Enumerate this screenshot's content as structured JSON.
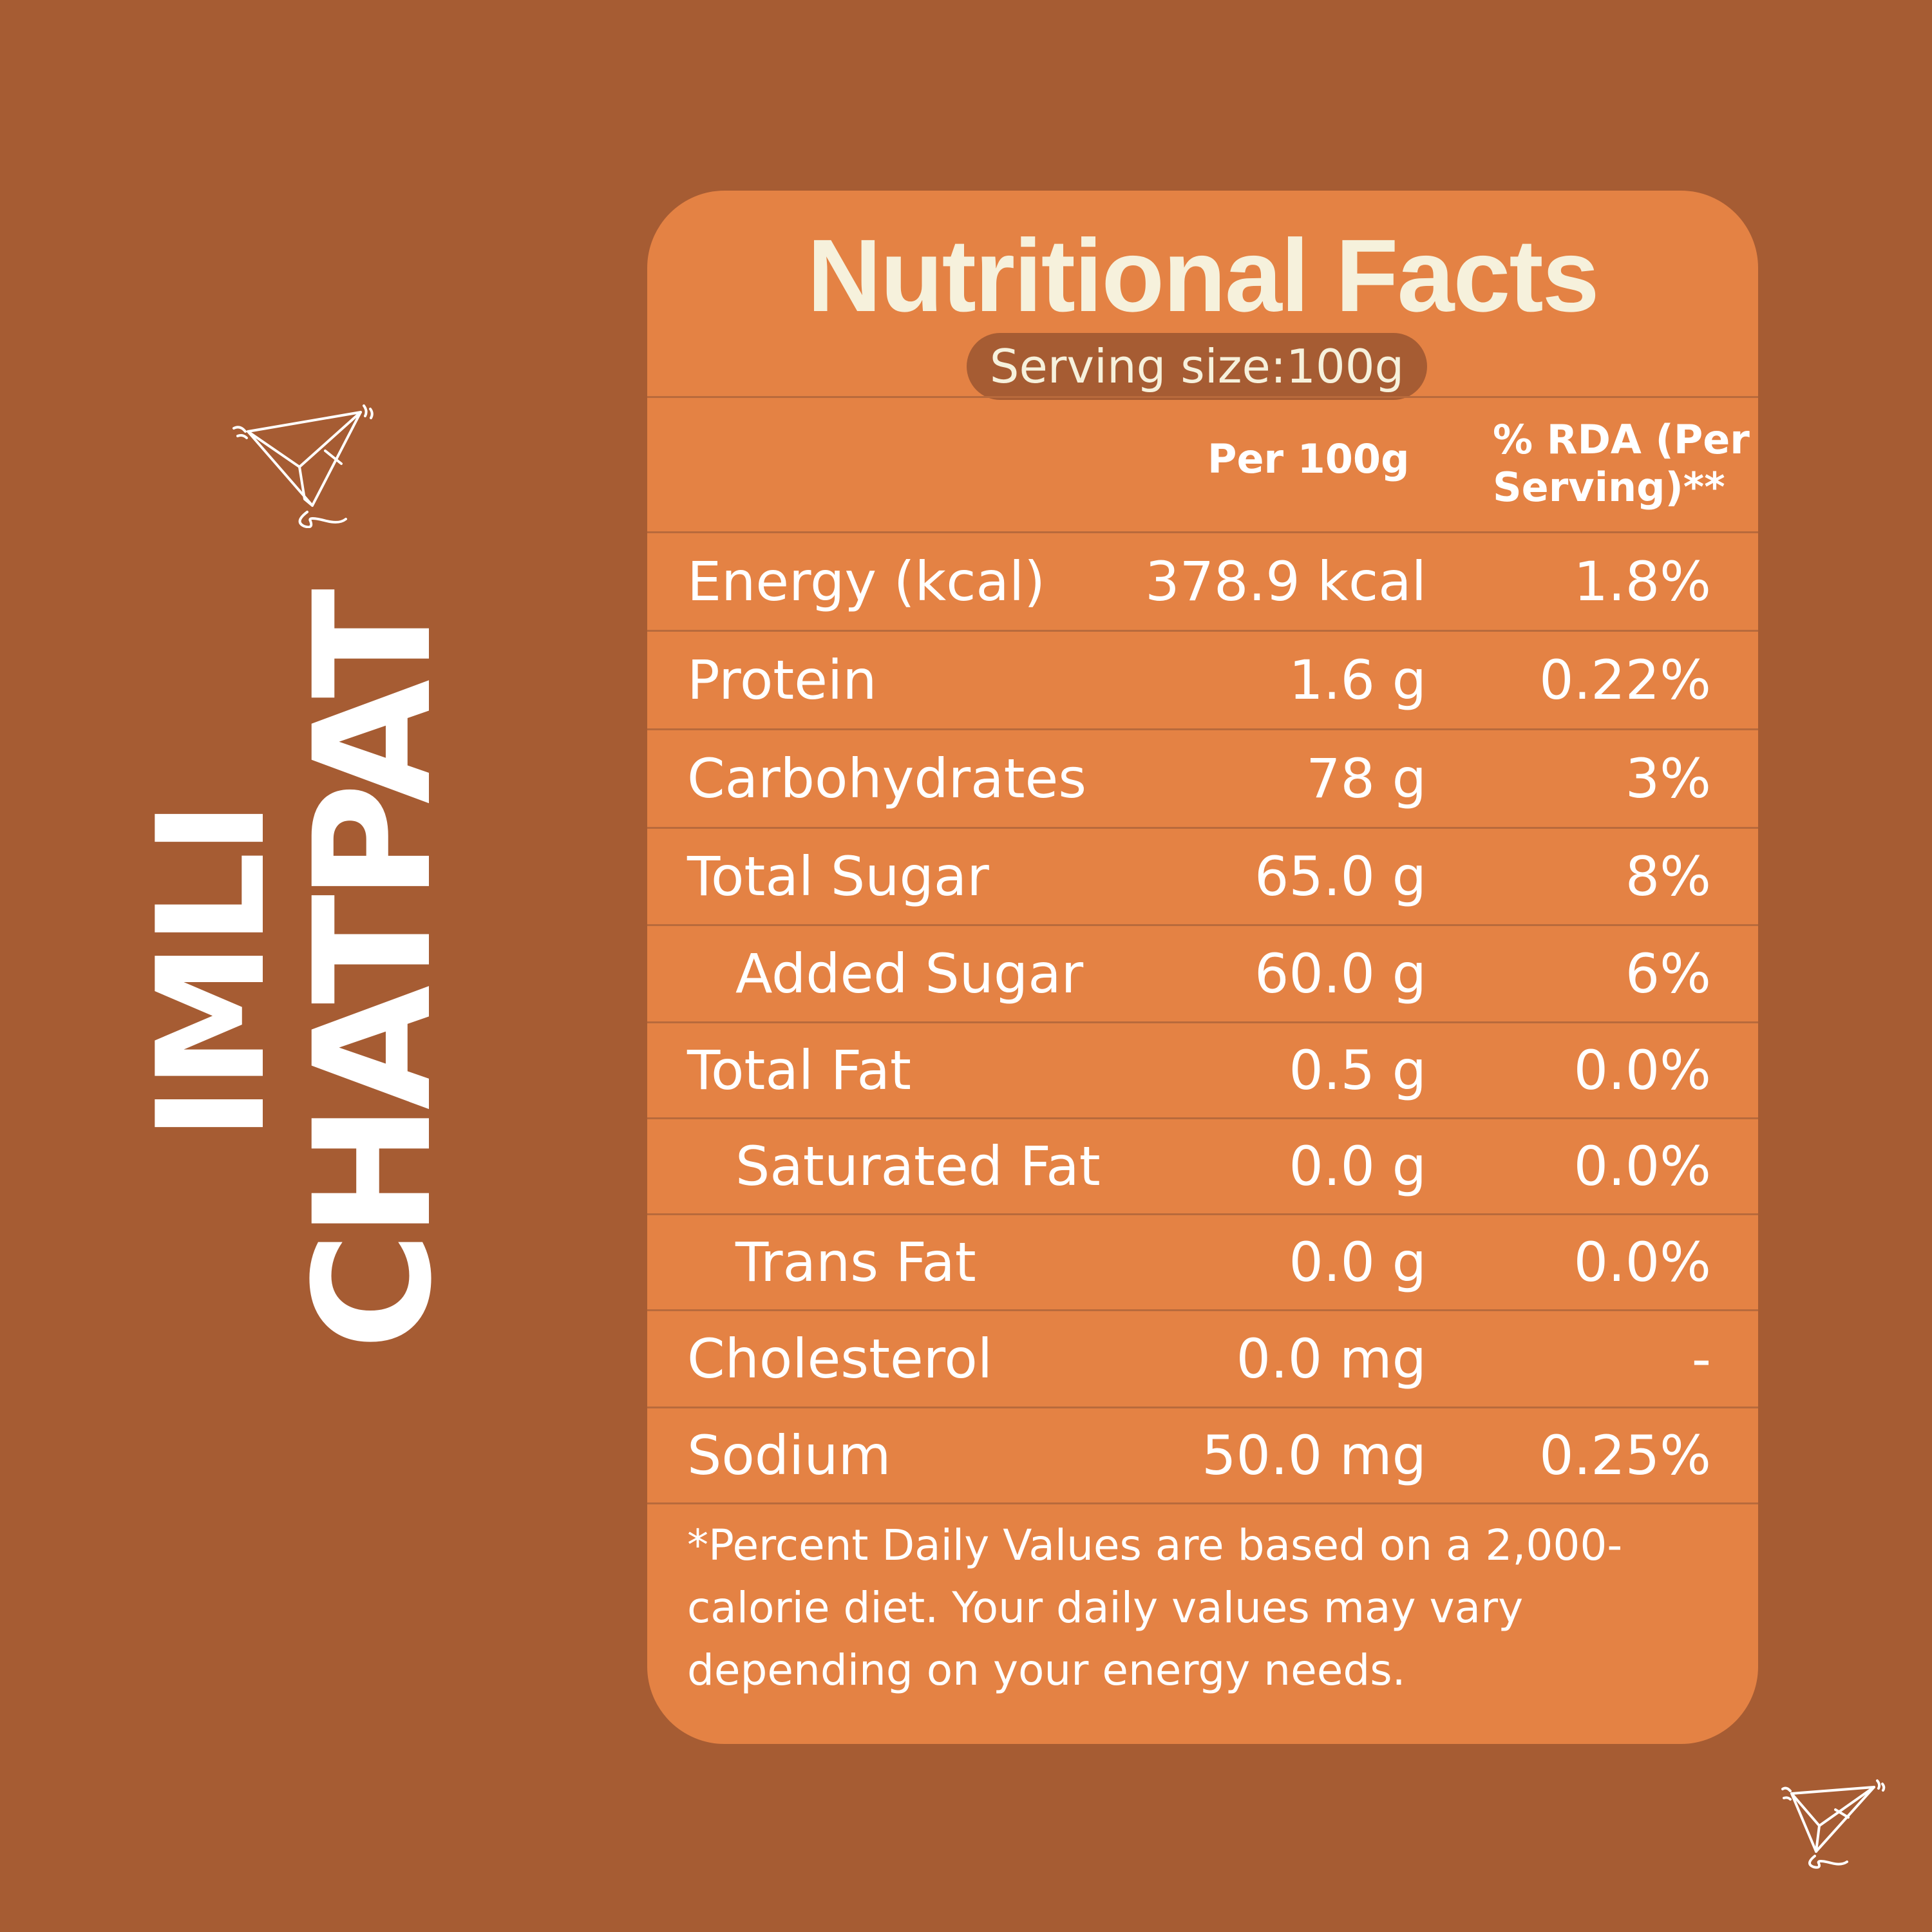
{
  "brand": {
    "line1": "IMLI",
    "line2": "CHATPAT"
  },
  "panel": {
    "title": "Nutritional Facts",
    "serving_size": "Serving size:100g",
    "columns": {
      "per": "Per 100g",
      "rda": "% RDA (Per Serving)**"
    },
    "rows": [
      {
        "name": "Energy (kcal)",
        "per": "378.9 kcal",
        "rda": "1.8%"
      },
      {
        "name": "Protein",
        "per": "1.6 g",
        "rda": "0.22%"
      },
      {
        "name": "Carbohydrates",
        "per": "78 g",
        "rda": "3%"
      },
      {
        "name": "Total Sugar",
        "per": "65.0 g",
        "rda": "8%"
      },
      {
        "name": "Added Sugar",
        "per": "60.0 g",
        "rda": "6%"
      },
      {
        "name": "Total Fat",
        "per": "0.5 g",
        "rda": "0.0%"
      },
      {
        "name": "Saturated Fat",
        "per": "0.0 g",
        "rda": "0.0%"
      },
      {
        "name": "Trans Fat",
        "per": "0.0 g",
        "rda": "0.0%"
      },
      {
        "name": "Cholesterol",
        "per": "0.0 mg",
        "rda": "-"
      },
      {
        "name": "Sodium",
        "per": "50.0 mg",
        "rda": "0.25%"
      }
    ],
    "footnote": "*Percent Daily Values are based on a 2,000-calorie diet. Your daily values may vary depending on your energy needs."
  },
  "colors": {
    "background": "#a65c33",
    "panel": "#e48244",
    "title_text": "#f6f1dc",
    "text": "#ffffff"
  },
  "icons": [
    "paper-plane-icon",
    "paper-plane-icon"
  ]
}
